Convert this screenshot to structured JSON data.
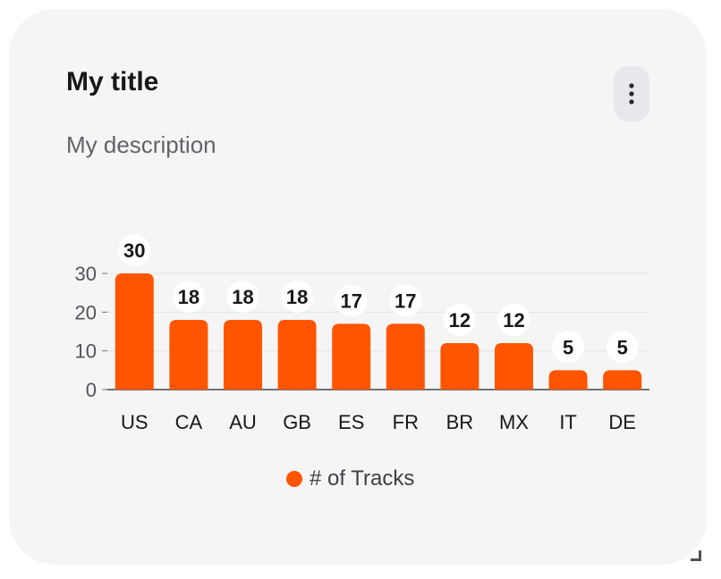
{
  "card": {
    "title": "My title",
    "description": "My description",
    "menu_icon": "more-vertical-icon"
  },
  "colors": {
    "accent": "#ff5500",
    "card_background": "#f5f5f5",
    "menu_button_background": "#e8e8ec"
  },
  "chart_data": {
    "type": "bar",
    "categories": [
      "US",
      "CA",
      "AU",
      "GB",
      "ES",
      "FR",
      "BR",
      "MX",
      "IT",
      "DE"
    ],
    "series": [
      {
        "name": "# of Tracks",
        "values": [
          30,
          18,
          18,
          18,
          17,
          17,
          12,
          12,
          5,
          5
        ]
      }
    ],
    "yticks": [
      "0",
      "10",
      "20",
      "30"
    ],
    "ylim": [
      0,
      30
    ],
    "grid": true,
    "data_labels": true,
    "legend_position": "bottom-center"
  }
}
